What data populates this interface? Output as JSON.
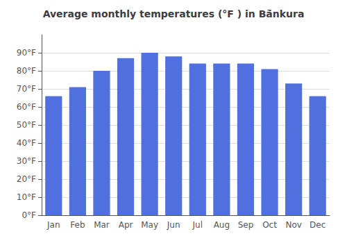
{
  "chart_data": {
    "type": "bar",
    "title": "Average monthly temperatures (°F ) in Bā̇nkura",
    "categories": [
      "Jan",
      "Feb",
      "Mar",
      "Apr",
      "May",
      "Jun",
      "Jul",
      "Aug",
      "Sep",
      "Oct",
      "Nov",
      "Dec"
    ],
    "values": [
      66,
      71,
      80,
      87,
      90,
      88,
      84,
      84,
      84,
      81,
      73,
      66
    ],
    "ylim": [
      0,
      100
    ],
    "yticks": [
      {
        "value": 0,
        "label": "0°F"
      },
      {
        "value": 10,
        "label": "10°F"
      },
      {
        "value": 20,
        "label": "20°F"
      },
      {
        "value": 30,
        "label": "30°F"
      },
      {
        "value": 40,
        "label": "40°F"
      },
      {
        "value": 50,
        "label": "50°F"
      },
      {
        "value": 60,
        "label": "60°F"
      },
      {
        "value": 70,
        "label": "70°F"
      },
      {
        "value": 80,
        "label": "80°F"
      },
      {
        "value": 90,
        "label": "90°F"
      }
    ],
    "grid": true
  }
}
